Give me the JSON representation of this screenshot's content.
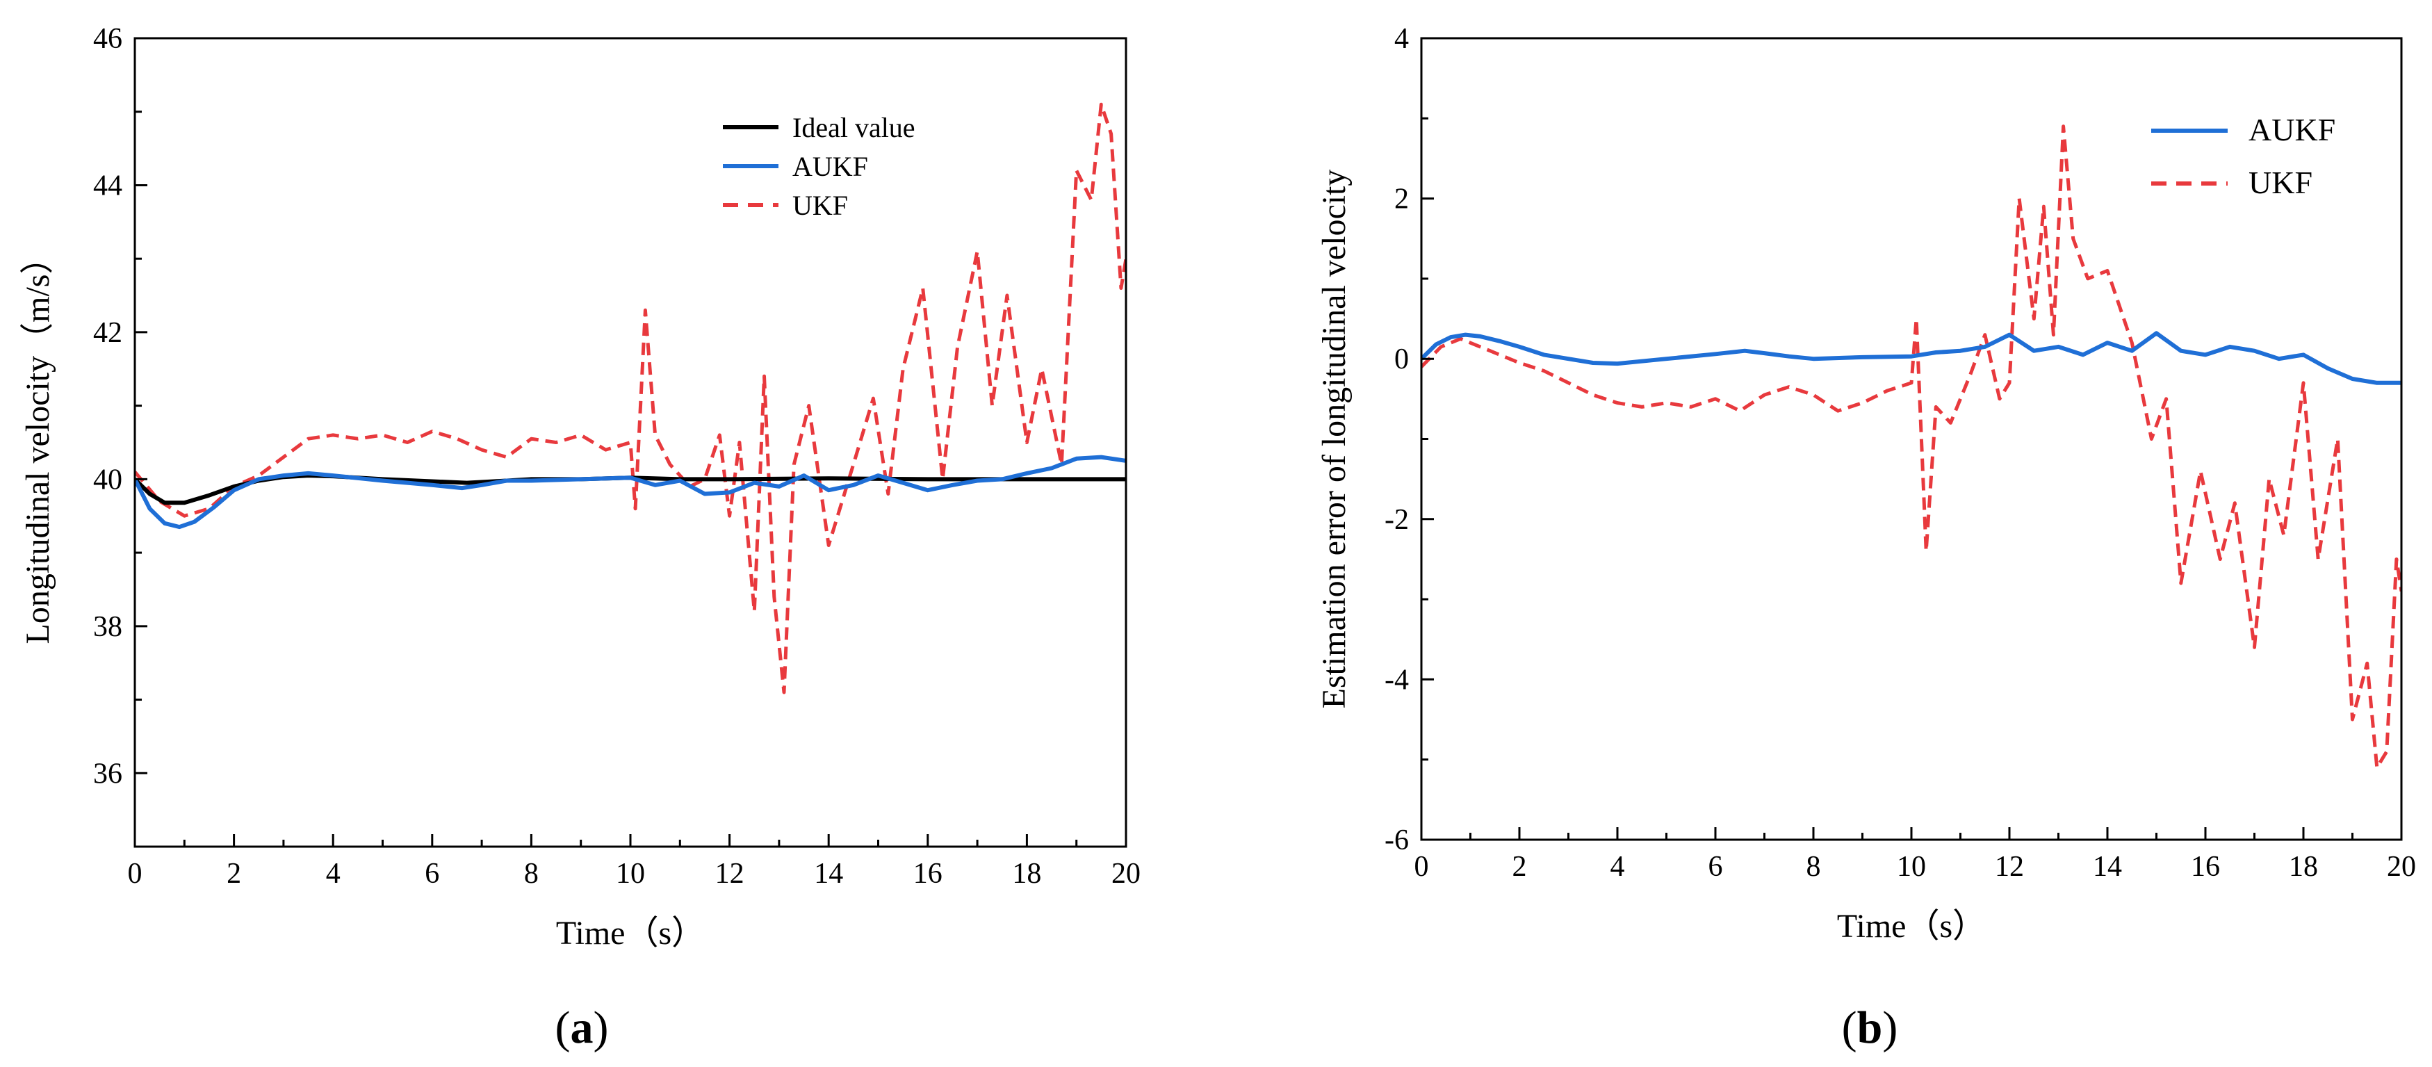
{
  "figure": {
    "panels": [
      "(a)",
      "(b)"
    ],
    "panel_a": {
      "open": "(",
      "letter": "a",
      "close": ")"
    },
    "panel_b": {
      "open": "(",
      "letter": "b",
      "close": ")"
    }
  },
  "chart_data": [
    {
      "id": "a",
      "type": "line",
      "title": "",
      "xlabel": "Time（s）",
      "ylabel": "Longitudinal velocity（m/s）",
      "xlim": [
        0,
        20
      ],
      "ylim": [
        35,
        46
      ],
      "xticks": [
        0,
        2,
        4,
        6,
        8,
        10,
        12,
        14,
        16,
        18,
        20
      ],
      "yticks": [
        36,
        38,
        40,
        42,
        44,
        46
      ],
      "legend_position": "top-right",
      "series": [
        {
          "name": "Ideal value",
          "color": "#000000",
          "style": "solid",
          "x": [
            0,
            0.3,
            0.6,
            1,
            1.5,
            2,
            2.5,
            3,
            3.5,
            4,
            5,
            6,
            6.7,
            7.5,
            8,
            9,
            10,
            11,
            12,
            14,
            16,
            18,
            20
          ],
          "y": [
            40,
            39.8,
            39.68,
            39.68,
            39.78,
            39.9,
            39.98,
            40.03,
            40.05,
            40.04,
            40.0,
            39.97,
            39.95,
            39.98,
            40.0,
            40.0,
            40.02,
            40.0,
            40.0,
            40.01,
            40.0,
            40.0,
            40.0
          ]
        },
        {
          "name": "AUKF",
          "color": "#1f6fd6",
          "style": "solid",
          "x": [
            0,
            0.3,
            0.6,
            0.9,
            1.2,
            1.6,
            2,
            2.5,
            3,
            3.5,
            4,
            5,
            6,
            6.6,
            7,
            7.5,
            8,
            9,
            10,
            10.5,
            11,
            11.5,
            12,
            12.5,
            13,
            13.5,
            14,
            14.5,
            15,
            15.5,
            16,
            16.5,
            17,
            17.5,
            18,
            18.5,
            19,
            19.5,
            20
          ],
          "y": [
            40,
            39.6,
            39.4,
            39.35,
            39.42,
            39.62,
            39.85,
            40.0,
            40.05,
            40.08,
            40.05,
            39.98,
            39.92,
            39.88,
            39.92,
            39.98,
            39.98,
            40.0,
            40.02,
            39.92,
            39.98,
            39.8,
            39.82,
            39.95,
            39.9,
            40.05,
            39.85,
            39.92,
            40.05,
            39.95,
            39.85,
            39.92,
            39.98,
            40.0,
            40.08,
            40.15,
            40.28,
            40.3,
            40.25
          ]
        },
        {
          "name": "UKF",
          "color": "#e8393d",
          "style": "dashed",
          "x": [
            0,
            0.5,
            1,
            1.5,
            2,
            2.5,
            3,
            3.5,
            4,
            4.5,
            5,
            5.5,
            6,
            6.5,
            7,
            7.5,
            8,
            8.5,
            9,
            9.5,
            10,
            10.1,
            10.3,
            10.5,
            10.8,
            11.2,
            11.5,
            11.8,
            12,
            12.2,
            12.5,
            12.7,
            12.9,
            13.1,
            13.3,
            13.6,
            14,
            14.5,
            14.9,
            15.2,
            15.5,
            15.9,
            16.3,
            16.6,
            17,
            17.3,
            17.6,
            18,
            18.3,
            18.7,
            19,
            19.3,
            19.5,
            19.7,
            19.9,
            20
          ],
          "y": [
            40.1,
            39.7,
            39.5,
            39.6,
            39.9,
            40.05,
            40.3,
            40.55,
            40.6,
            40.55,
            40.6,
            40.5,
            40.65,
            40.55,
            40.4,
            40.3,
            40.55,
            40.5,
            40.6,
            40.4,
            40.5,
            39.6,
            42.3,
            40.6,
            40.2,
            39.9,
            40.0,
            40.6,
            39.5,
            40.5,
            38.2,
            41.4,
            38.4,
            37.1,
            40.2,
            41.0,
            39.1,
            40.2,
            41.1,
            39.8,
            41.5,
            42.6,
            40.0,
            41.8,
            43.1,
            41.0,
            42.5,
            40.5,
            41.5,
            40.2,
            44.2,
            43.8,
            45.1,
            44.7,
            42.6,
            43.0
          ]
        }
      ]
    },
    {
      "id": "b",
      "type": "line",
      "title": "",
      "xlabel": "Time（s）",
      "ylabel": "Estimation error of longitudinal velocity",
      "xlim": [
        0,
        20
      ],
      "ylim": [
        -6,
        4
      ],
      "xticks": [
        0,
        2,
        4,
        6,
        8,
        10,
        12,
        14,
        16,
        18,
        20
      ],
      "yticks": [
        -6,
        -4,
        -2,
        0,
        2,
        4
      ],
      "legend_position": "top-right",
      "series": [
        {
          "name": "AUKF",
          "color": "#1f6fd6",
          "style": "solid",
          "x": [
            0,
            0.3,
            0.6,
            0.9,
            1.2,
            1.6,
            2,
            2.5,
            3,
            3.5,
            4,
            5,
            6,
            6.6,
            7,
            7.5,
            8,
            9,
            10,
            10.5,
            11,
            11.5,
            12,
            12.5,
            13,
            13.5,
            14,
            14.5,
            15,
            15.5,
            16,
            16.5,
            17,
            17.5,
            18,
            18.5,
            19,
            19.5,
            20
          ],
          "y": [
            0,
            0.18,
            0.27,
            0.3,
            0.28,
            0.22,
            0.15,
            0.05,
            0.0,
            -0.05,
            -0.06,
            0.0,
            0.06,
            0.1,
            0.07,
            0.03,
            0.0,
            0.02,
            0.03,
            0.08,
            0.1,
            0.15,
            0.3,
            0.1,
            0.15,
            0.05,
            0.2,
            0.1,
            0.32,
            0.1,
            0.05,
            0.15,
            0.1,
            0.0,
            0.05,
            -0.12,
            -0.25,
            -0.3,
            -0.3
          ]
        },
        {
          "name": "UKF",
          "color": "#e8393d",
          "style": "dashed",
          "x": [
            0,
            0.4,
            0.8,
            1.2,
            1.6,
            2,
            2.5,
            3,
            3.5,
            4,
            4.5,
            5,
            5.5,
            6,
            6.5,
            7,
            7.5,
            8,
            8.5,
            9,
            9.5,
            10,
            10.1,
            10.3,
            10.5,
            10.8,
            11.2,
            11.5,
            11.8,
            12,
            12.2,
            12.5,
            12.7,
            12.9,
            13.1,
            13.3,
            13.6,
            14,
            14.5,
            14.9,
            15.2,
            15.5,
            15.9,
            16.3,
            16.6,
            17,
            17.3,
            17.6,
            18,
            18.3,
            18.7,
            19,
            19.3,
            19.5,
            19.7,
            19.9,
            20
          ],
          "y": [
            -0.1,
            0.15,
            0.25,
            0.15,
            0.05,
            -0.05,
            -0.15,
            -0.3,
            -0.45,
            -0.55,
            -0.6,
            -0.55,
            -0.6,
            -0.5,
            -0.65,
            -0.45,
            -0.35,
            -0.45,
            -0.65,
            -0.55,
            -0.4,
            -0.3,
            0.5,
            -2.4,
            -0.6,
            -0.8,
            -0.2,
            0.3,
            -0.5,
            -0.3,
            2.0,
            0.5,
            1.9,
            0.3,
            2.9,
            1.5,
            1.0,
            1.1,
            0.2,
            -1.0,
            -0.5,
            -2.8,
            -1.4,
            -2.5,
            -1.8,
            -3.6,
            -1.5,
            -2.2,
            -0.3,
            -2.5,
            -1.0,
            -4.5,
            -3.8,
            -5.1,
            -4.9,
            -2.5,
            -2.9
          ]
        }
      ]
    }
  ]
}
